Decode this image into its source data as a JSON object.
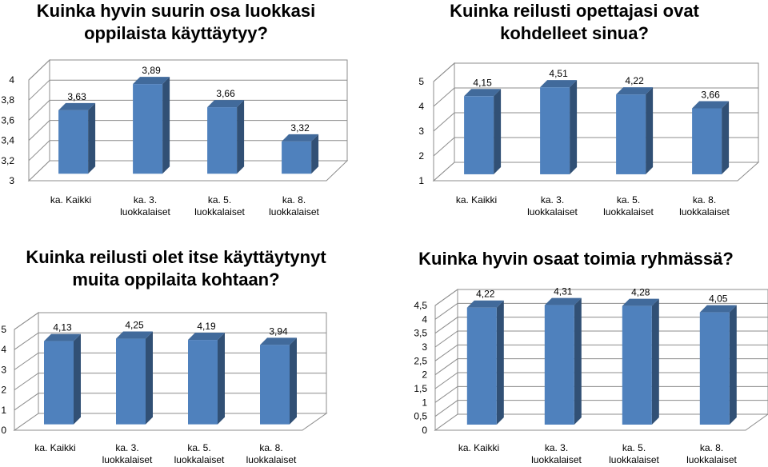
{
  "chart_data": [
    {
      "type": "bar",
      "title_lines": [
        "Kuinka hyvin suurin osa luokkasi",
        "oppilaista käyttäytyy?"
      ],
      "categories": [
        [
          "ka. Kaikki"
        ],
        [
          "ka. 3.",
          "luokkalaiset"
        ],
        [
          "ka. 5.",
          "luokkalaiset"
        ],
        [
          "ka. 8.",
          "luokkalaiset"
        ]
      ],
      "values": [
        3.63,
        3.89,
        3.66,
        3.32
      ],
      "value_labels": [
        "3,63",
        "3,89",
        "3,66",
        "3,32"
      ],
      "ylim": [
        3,
        4
      ],
      "yticks": [
        "3",
        "3,2",
        "3,4",
        "3,6",
        "3,8",
        "4"
      ],
      "grid": true,
      "bar_color": "#4F81BD"
    },
    {
      "type": "bar",
      "title_lines": [
        "Kuinka reilusti opettajasi ovat",
        "kohdelleet sinua?"
      ],
      "categories": [
        [
          "ka. Kaikki"
        ],
        [
          "ka. 3.",
          "luokkalaiset"
        ],
        [
          "ka. 5.",
          "luokkalaiset"
        ],
        [
          "ka. 8.",
          "luokkalaiset"
        ]
      ],
      "values": [
        4.15,
        4.51,
        4.22,
        3.66
      ],
      "value_labels": [
        "4,15",
        "4,51",
        "4,22",
        "3,66"
      ],
      "ylim": [
        1,
        5
      ],
      "yticks": [
        "1",
        "2",
        "3",
        "4",
        "5"
      ],
      "grid": true,
      "bar_color": "#4F81BD"
    },
    {
      "type": "bar",
      "title_lines": [
        "Kuinka reilusti olet itse käyttäytynyt",
        "muita oppilaita kohtaan?"
      ],
      "categories": [
        [
          "ka. Kaikki"
        ],
        [
          "ka. 3.",
          "luokkalaiset"
        ],
        [
          "ka. 5.",
          "luokkalaiset"
        ],
        [
          "ka. 8.",
          "luokkalaiset"
        ]
      ],
      "values": [
        4.13,
        4.25,
        4.19,
        3.94
      ],
      "value_labels": [
        "4,13",
        "4,25",
        "4,19",
        "3,94"
      ],
      "ylim": [
        0,
        5
      ],
      "yticks": [
        "0",
        "1",
        "2",
        "3",
        "4",
        "5"
      ],
      "grid": true,
      "bar_color": "#4F81BD"
    },
    {
      "type": "bar",
      "title_lines": [
        "Kuinka hyvin osaat toimia ryhmässä?"
      ],
      "categories": [
        [
          "ka. Kaikki"
        ],
        [
          "ka. 3.",
          "luokkalaiset"
        ],
        [
          "ka. 5.",
          "luokkalaiset"
        ],
        [
          "ka. 8.",
          "luokkalaiset"
        ]
      ],
      "values": [
        4.22,
        4.31,
        4.28,
        4.05
      ],
      "value_labels": [
        "4,22",
        "4,31",
        "4,28",
        "4,05"
      ],
      "ylim": [
        0,
        4.5
      ],
      "yticks": [
        "0",
        "0,5",
        "1",
        "1,5",
        "2",
        "2,5",
        "3",
        "3,5",
        "4",
        "4,5"
      ],
      "grid": true,
      "bar_color": "#4F81BD"
    }
  ]
}
